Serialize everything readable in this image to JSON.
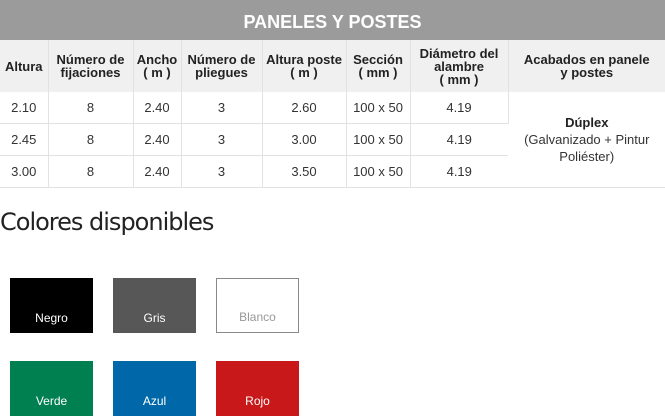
{
  "table": {
    "title": "PANELES Y POSTES",
    "headers": [
      [
        "Altura"
      ],
      [
        "Número de",
        "fijaciones"
      ],
      [
        "Ancho",
        "( m )"
      ],
      [
        "Número de",
        "pliegues"
      ],
      [
        "Altura poste",
        "( m )"
      ],
      [
        "Sección",
        "( mm )"
      ],
      [
        "Diámetro del",
        "alambre",
        "( mm )"
      ],
      [
        "Acabados en panele",
        "y postes"
      ]
    ],
    "rows": [
      [
        "2.10",
        "8",
        "2.40",
        "3",
        "2.60",
        "100 x 50",
        "4.19"
      ],
      [
        "2.45",
        "8",
        "2.40",
        "3",
        "3.00",
        "100 x 50",
        "4.19"
      ],
      [
        "3.00",
        "8",
        "2.40",
        "3",
        "3.50",
        "100 x 50",
        "4.19"
      ]
    ],
    "finish": {
      "title": "Dúplex",
      "line1": "(Galvanizado + Pintur",
      "line2": "Poliéster)"
    }
  },
  "colors": {
    "heading": "Colores disponibles",
    "swatches": [
      {
        "label": "Negro",
        "color": "#000000"
      },
      {
        "label": "Gris",
        "color": "#575757"
      },
      {
        "label": "Blanco",
        "color": "#ffffff"
      },
      {
        "label": "Verde",
        "color": "#007f50"
      },
      {
        "label": "Azul",
        "color": "#0068a8"
      },
      {
        "label": "Rojo",
        "color": "#c8181a"
      }
    ]
  }
}
